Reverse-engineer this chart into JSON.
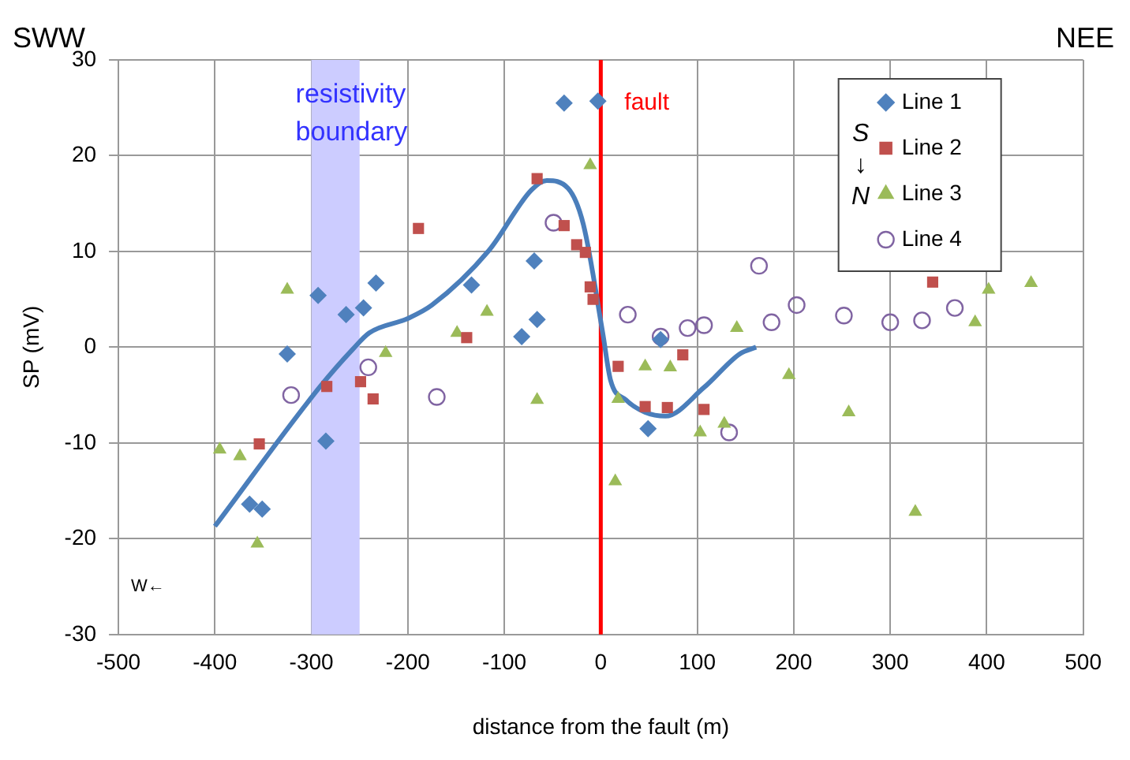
{
  "chart_data": {
    "type": "scatter",
    "xlabel": "distance from the fault (m)",
    "ylabel": "SP (mV)",
    "xlim": [
      -500,
      500
    ],
    "xticks": [
      -500,
      -400,
      -300,
      -200,
      -100,
      0,
      100,
      200,
      300,
      400,
      500
    ],
    "ylim": [
      -30,
      30
    ],
    "yticks": [
      -30,
      -20,
      -10,
      0,
      10,
      20,
      30
    ],
    "grid": true,
    "legend": "top right",
    "annotations": [
      "SWW",
      "NEE",
      "W←",
      "S ↓ N"
    ],
    "bands": [
      {
        "axis": "x",
        "from": -300,
        "to": -250,
        "label": "resistivity boundary",
        "color": "#ccccff"
      }
    ],
    "ref_lines": [
      {
        "axis": "x",
        "value": 0,
        "label": "fault",
        "color": "#ff0000"
      }
    ],
    "series": [
      {
        "name": "Line 1",
        "color": "#4f81bd",
        "marker": "diamond",
        "x": [
          -38,
          -3,
          -293,
          -264,
          -246,
          -233,
          -134,
          -69,
          -66,
          -82,
          -325,
          -285,
          -364,
          -351,
          62,
          49
        ],
        "values": [
          25.5,
          25.7,
          5.4,
          3.4,
          4.1,
          6.7,
          6.5,
          9.0,
          2.9,
          1.1,
          -0.7,
          -9.8,
          -16.4,
          -16.9,
          0.8,
          -8.5
        ]
      },
      {
        "name": "Line 2",
        "color": "#c0504d",
        "marker": "square",
        "x": [
          -66,
          -189,
          -38,
          -25,
          -16,
          -11,
          -8,
          -139,
          -284,
          -249,
          -236,
          -354,
          18,
          85,
          46,
          69,
          107,
          344
        ],
        "values": [
          17.6,
          12.4,
          12.7,
          10.7,
          9.9,
          6.3,
          5.0,
          1.0,
          -4.1,
          -3.6,
          -5.4,
          -10.1,
          -2.0,
          -0.8,
          -6.2,
          -6.3,
          -6.5,
          6.8
        ]
      },
      {
        "name": "Line 3",
        "color": "#9bbb59",
        "marker": "triangle",
        "x": [
          -11,
          -325,
          -118,
          -149,
          -223,
          -66,
          -395,
          -374,
          -356,
          18,
          46,
          72,
          103,
          128,
          195,
          257,
          15,
          326,
          141,
          402,
          446,
          388
        ],
        "values": [
          19.0,
          6.0,
          3.7,
          1.5,
          -0.6,
          -5.5,
          -10.7,
          -11.4,
          -20.5,
          -5.4,
          -2.0,
          -2.1,
          -8.9,
          -8.0,
          -2.9,
          -6.8,
          -14.0,
          -17.2,
          2.0,
          6.0,
          6.7,
          2.6
        ]
      },
      {
        "name": "Line 4",
        "color": "#8064a2",
        "marker": "circle",
        "x": [
          -49,
          -241,
          -321,
          -170,
          164,
          28,
          62,
          90,
          107,
          177,
          203,
          252,
          300,
          333,
          367,
          133
        ],
        "values": [
          13.0,
          -2.1,
          -5.0,
          -5.2,
          8.5,
          3.4,
          1.1,
          2.0,
          2.3,
          2.6,
          4.4,
          3.3,
          2.6,
          2.8,
          4.1,
          -8.9
        ]
      },
      {
        "type": "line",
        "color": "#4a7ebb",
        "marker": "none",
        "x": [
          -400,
          -290,
          -257,
          -240,
          -200,
          -175,
          -116,
          -72,
          -56,
          -34,
          -18,
          2,
          10,
          26,
          46,
          67,
          107,
          144,
          161
        ],
        "values": [
          -18.7,
          -4,
          -0.2,
          1.5,
          3,
          4.4,
          10.1,
          16.4,
          17.4,
          16.6,
          12.8,
          1.5,
          -3.4,
          -5.5,
          -6.8,
          -7.2,
          -4.2,
          -0.7,
          0
        ]
      }
    ]
  }
}
